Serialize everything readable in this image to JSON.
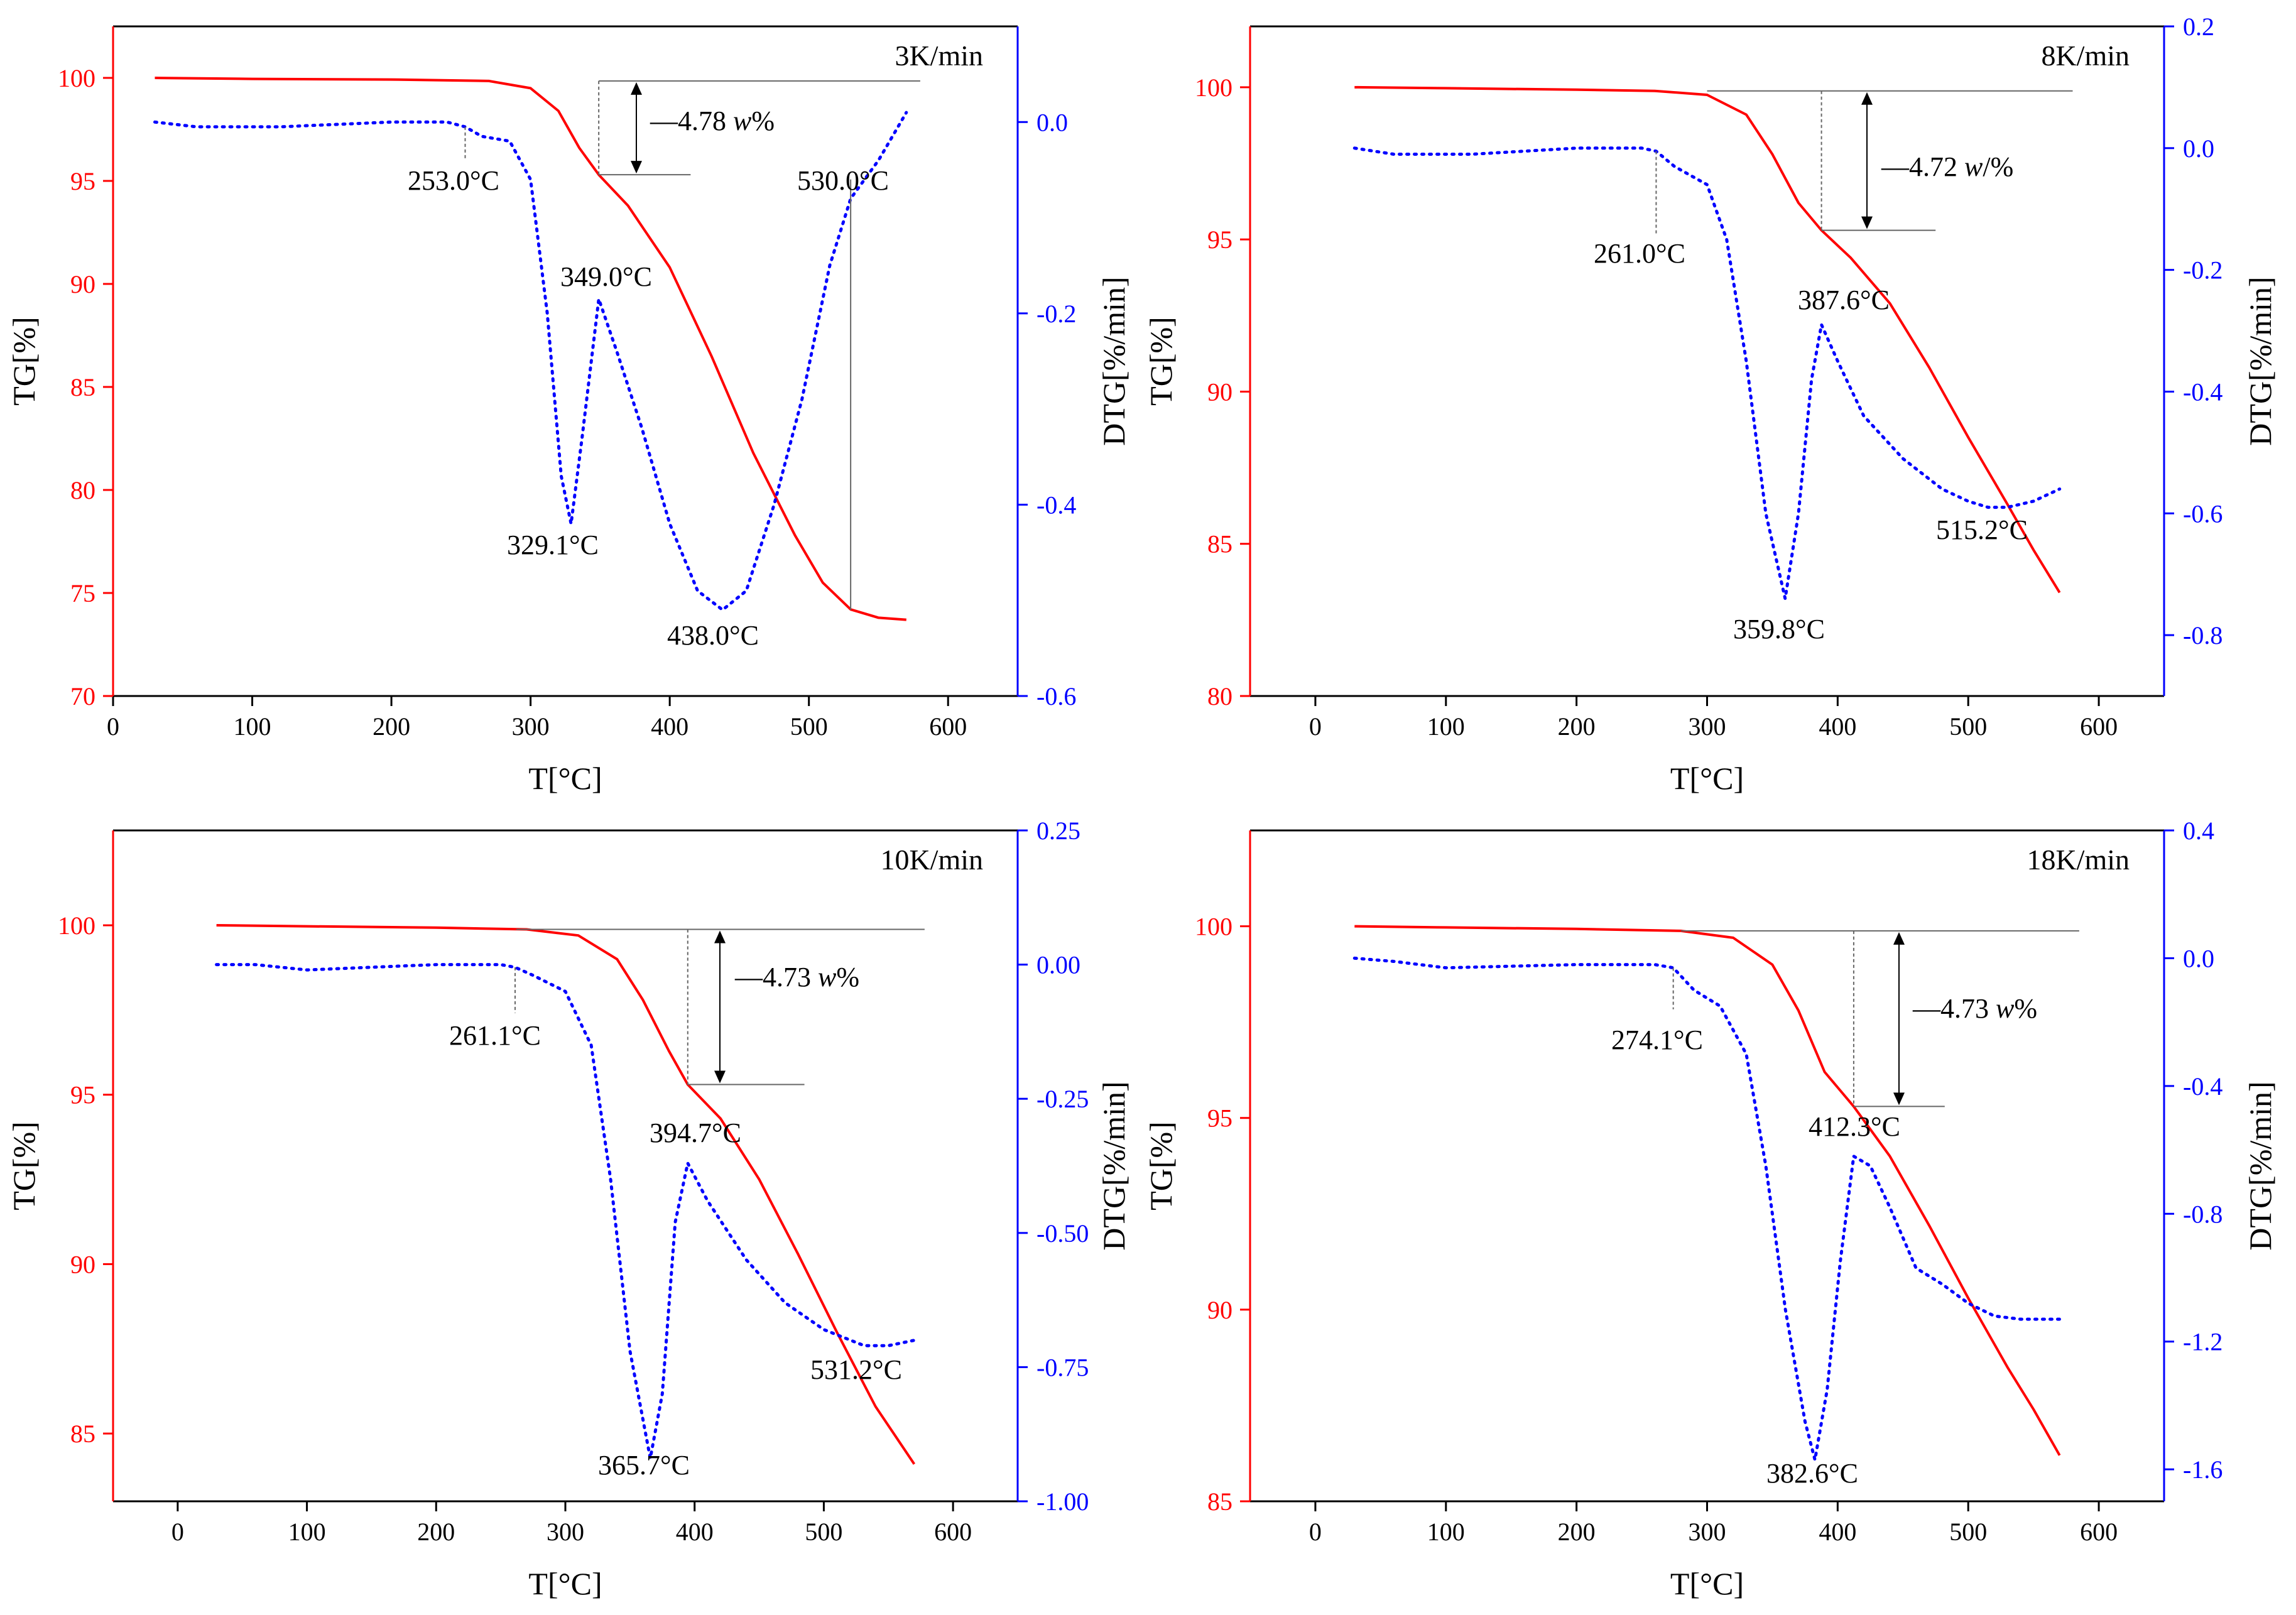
{
  "colors": {
    "tg": "#ff0000",
    "dtg": "#0000ff",
    "axis": "#000000",
    "guide": "#666666"
  },
  "chart_data": [
    {
      "type": "line",
      "panel": "top-left",
      "rate_label": "3K/min",
      "xlabel": "T[°C]",
      "ylabel": "TG[%]",
      "y2label": "DTG[%/min]",
      "xlim": [
        0,
        650
      ],
      "xticks": [
        0,
        100,
        200,
        300,
        400,
        500,
        600
      ],
      "ylim": [
        70,
        102.5
      ],
      "yticks": [
        70,
        75,
        80,
        85,
        90,
        95,
        100
      ],
      "y2lim": [
        -0.6,
        0.1
      ],
      "y2ticks": [
        -0.6,
        -0.4,
        -0.2,
        0.0
      ],
      "y2tick_labels": [
        "-0.6",
        "-0.4",
        "-0.2",
        "0.0"
      ],
      "series": [
        {
          "name": "TG",
          "axis": "left",
          "style": "solid",
          "points": [
            [
              30,
              100
            ],
            [
              100,
              99.95
            ],
            [
              200,
              99.92
            ],
            [
              270,
              99.85
            ],
            [
              300,
              99.5
            ],
            [
              320,
              98.4
            ],
            [
              335,
              96.6
            ],
            [
              349,
              95.3
            ],
            [
              370,
              93.8
            ],
            [
              400,
              90.8
            ],
            [
              430,
              86.5
            ],
            [
              460,
              81.8
            ],
            [
              490,
              77.8
            ],
            [
              510,
              75.5
            ],
            [
              530,
              74.2
            ],
            [
              550,
              73.8
            ],
            [
              570,
              73.7
            ]
          ]
        },
        {
          "name": "DTG",
          "axis": "right",
          "style": "dotted",
          "points": [
            [
              30,
              0
            ],
            [
              60,
              -0.005
            ],
            [
              120,
              -0.005
            ],
            [
              200,
              0
            ],
            [
              240,
              0
            ],
            [
              253,
              -0.005
            ],
            [
              265,
              -0.015
            ],
            [
              285,
              -0.02
            ],
            [
              300,
              -0.06
            ],
            [
              312,
              -0.2
            ],
            [
              322,
              -0.37
            ],
            [
              329.1,
              -0.42
            ],
            [
              337,
              -0.33
            ],
            [
              349,
              -0.185
            ],
            [
              362,
              -0.24
            ],
            [
              380,
              -0.32
            ],
            [
              400,
              -0.42
            ],
            [
              420,
              -0.49
            ],
            [
              438,
              -0.51
            ],
            [
              455,
              -0.49
            ],
            [
              475,
              -0.4
            ],
            [
              495,
              -0.29
            ],
            [
              515,
              -0.15
            ],
            [
              530,
              -0.08
            ],
            [
              550,
              -0.04
            ],
            [
              570,
              0.01
            ]
          ]
        }
      ],
      "labels": {
        "onset": "253.0°C",
        "peak1": "329.1°C",
        "peak2": "349.0°C",
        "peak3": "438.0°C",
        "end": "530.0°C",
        "mass_loss": "4.78",
        "unit": "w",
        "unit_suffix": "%"
      }
    },
    {
      "type": "line",
      "panel": "top-right",
      "rate_label": "8K/min",
      "xlabel": "T[°C]",
      "ylabel": "TG[%]",
      "y2label": "DTG[%/min]",
      "xlim": [
        -50,
        650
      ],
      "xticks": [
        0,
        100,
        200,
        300,
        400,
        500,
        600
      ],
      "ylim": [
        80,
        102
      ],
      "yticks": [
        80,
        85,
        90,
        95,
        100
      ],
      "y2lim": [
        -0.9,
        0.2
      ],
      "y2ticks": [
        -0.8,
        -0.6,
        -0.4,
        -0.2,
        0.0,
        0.2
      ],
      "y2tick_labels": [
        "-0.8",
        "-0.6",
        "-0.4",
        "-0.2",
        "0.0",
        "0.2"
      ],
      "series": [
        {
          "name": "TG",
          "axis": "left",
          "style": "solid",
          "points": [
            [
              30,
              100
            ],
            [
              100,
              99.97
            ],
            [
              200,
              99.92
            ],
            [
              260,
              99.88
            ],
            [
              300,
              99.75
            ],
            [
              330,
              99.1
            ],
            [
              350,
              97.8
            ],
            [
              370,
              96.2
            ],
            [
              387.6,
              95.3
            ],
            [
              410,
              94.4
            ],
            [
              440,
              92.9
            ],
            [
              470,
              90.8
            ],
            [
              500,
              88.5
            ],
            [
              530,
              86.3
            ],
            [
              550,
              84.8
            ],
            [
              570,
              83.4
            ]
          ]
        },
        {
          "name": "DTG",
          "axis": "right",
          "style": "dotted",
          "points": [
            [
              30,
              0
            ],
            [
              60,
              -0.01
            ],
            [
              120,
              -0.01
            ],
            [
              200,
              0
            ],
            [
              250,
              0
            ],
            [
              261,
              -0.005
            ],
            [
              275,
              -0.03
            ],
            [
              300,
              -0.06
            ],
            [
              315,
              -0.15
            ],
            [
              330,
              -0.35
            ],
            [
              345,
              -0.6
            ],
            [
              359.8,
              -0.74
            ],
            [
              370,
              -0.6
            ],
            [
              380,
              -0.38
            ],
            [
              387.6,
              -0.29
            ],
            [
              400,
              -0.35
            ],
            [
              420,
              -0.44
            ],
            [
              450,
              -0.51
            ],
            [
              480,
              -0.56
            ],
            [
              500,
              -0.58
            ],
            [
              515.2,
              -0.59
            ],
            [
              530,
              -0.59
            ],
            [
              550,
              -0.58
            ],
            [
              570,
              -0.56
            ]
          ]
        }
      ],
      "labels": {
        "onset": "261.0°C",
        "peak1": "359.8°C",
        "peak2": "387.6°C",
        "peak3": "515.2°C",
        "mass_loss": "4.72",
        "unit": "w",
        "unit_suffix": "/%"
      }
    },
    {
      "type": "line",
      "panel": "bottom-left",
      "rate_label": "10K/min",
      "xlabel": "T[°C]",
      "ylabel": "TG[%]",
      "y2label": "DTG[%/min]",
      "xlim": [
        -50,
        650
      ],
      "xticks": [
        0,
        100,
        200,
        300,
        400,
        500,
        600
      ],
      "ylim": [
        83,
        102.8
      ],
      "yticks": [
        85,
        90,
        95,
        100
      ],
      "y2lim": [
        -1.0,
        0.25
      ],
      "y2ticks": [
        -1.0,
        -0.75,
        -0.5,
        -0.25,
        0.0,
        0.25
      ],
      "y2tick_labels": [
        "-1.00",
        "-0.75",
        "-0.50",
        "-0.25",
        "0.00",
        "0.25"
      ],
      "series": [
        {
          "name": "TG",
          "axis": "left",
          "style": "solid",
          "points": [
            [
              30,
              100
            ],
            [
              100,
              99.97
            ],
            [
              200,
              99.93
            ],
            [
              270,
              99.88
            ],
            [
              310,
              99.7
            ],
            [
              340,
              99.0
            ],
            [
              360,
              97.8
            ],
            [
              380,
              96.3
            ],
            [
              394.7,
              95.3
            ],
            [
              420,
              94.3
            ],
            [
              450,
              92.5
            ],
            [
              480,
              90.3
            ],
            [
              510,
              88.0
            ],
            [
              540,
              85.8
            ],
            [
              570,
              84.1
            ]
          ]
        },
        {
          "name": "DTG",
          "axis": "right",
          "style": "dotted",
          "points": [
            [
              30,
              0
            ],
            [
              60,
              0
            ],
            [
              100,
              -0.01
            ],
            [
              200,
              0
            ],
            [
              250,
              0
            ],
            [
              261.1,
              -0.005
            ],
            [
              275,
              -0.02
            ],
            [
              300,
              -0.05
            ],
            [
              320,
              -0.15
            ],
            [
              335,
              -0.4
            ],
            [
              350,
              -0.72
            ],
            [
              365.7,
              -0.92
            ],
            [
              375,
              -0.8
            ],
            [
              385,
              -0.48
            ],
            [
              394.7,
              -0.37
            ],
            [
              410,
              -0.44
            ],
            [
              440,
              -0.55
            ],
            [
              470,
              -0.63
            ],
            [
              500,
              -0.68
            ],
            [
              531.2,
              -0.71
            ],
            [
              550,
              -0.71
            ],
            [
              570,
              -0.7
            ]
          ]
        }
      ],
      "labels": {
        "onset": "261.1°C",
        "peak1": "365.7°C",
        "peak2": "394.7°C",
        "peak3": "531.2°C",
        "mass_loss": "4.73",
        "unit": "w",
        "unit_suffix": "%"
      }
    },
    {
      "type": "line",
      "panel": "bottom-right",
      "rate_label": "18K/min",
      "xlabel": "T[°C]",
      "ylabel": "TG[%]",
      "y2label": "DTG[%/min]",
      "xlim": [
        -50,
        650
      ],
      "xticks": [
        0,
        100,
        200,
        300,
        400,
        500,
        600
      ],
      "ylim": [
        85,
        102.5
      ],
      "yticks": [
        85,
        90,
        95,
        100
      ],
      "y2lim": [
        -1.7,
        0.4
      ],
      "y2ticks": [
        -1.6,
        -1.2,
        -0.8,
        -0.4,
        0.0,
        0.4
      ],
      "y2tick_labels": [
        "-1.6",
        "-1.2",
        "-0.8",
        "-0.4",
        "0.0",
        "0.4"
      ],
      "series": [
        {
          "name": "TG",
          "axis": "left",
          "style": "solid",
          "points": [
            [
              30,
              100
            ],
            [
              100,
              99.97
            ],
            [
              200,
              99.93
            ],
            [
              280,
              99.88
            ],
            [
              320,
              99.7
            ],
            [
              350,
              99.0
            ],
            [
              370,
              97.8
            ],
            [
              390,
              96.2
            ],
            [
              412.3,
              95.3
            ],
            [
              440,
              94.0
            ],
            [
              470,
              92.2
            ],
            [
              500,
              90.3
            ],
            [
              530,
              88.5
            ],
            [
              550,
              87.4
            ],
            [
              570,
              86.2
            ]
          ]
        },
        {
          "name": "DTG",
          "axis": "right",
          "style": "dotted",
          "points": [
            [
              30,
              0
            ],
            [
              60,
              -0.01
            ],
            [
              100,
              -0.03
            ],
            [
              200,
              -0.02
            ],
            [
              260,
              -0.02
            ],
            [
              274.1,
              -0.03
            ],
            [
              290,
              -0.1
            ],
            [
              310,
              -0.15
            ],
            [
              330,
              -0.3
            ],
            [
              345,
              -0.65
            ],
            [
              360,
              -1.1
            ],
            [
              375,
              -1.45
            ],
            [
              382.6,
              -1.57
            ],
            [
              392,
              -1.35
            ],
            [
              402,
              -0.95
            ],
            [
              412.3,
              -0.62
            ],
            [
              425,
              -0.65
            ],
            [
              440,
              -0.78
            ],
            [
              460,
              -0.97
            ],
            [
              480,
              -1.02
            ],
            [
              500,
              -1.08
            ],
            [
              520,
              -1.12
            ],
            [
              540,
              -1.13
            ],
            [
              570,
              -1.13
            ]
          ]
        }
      ],
      "labels": {
        "onset": "274.1°C",
        "peak1": "382.6°C",
        "peak2": "412.3°C",
        "mass_loss": "4.73",
        "unit": "w",
        "unit_suffix": "%"
      }
    }
  ]
}
